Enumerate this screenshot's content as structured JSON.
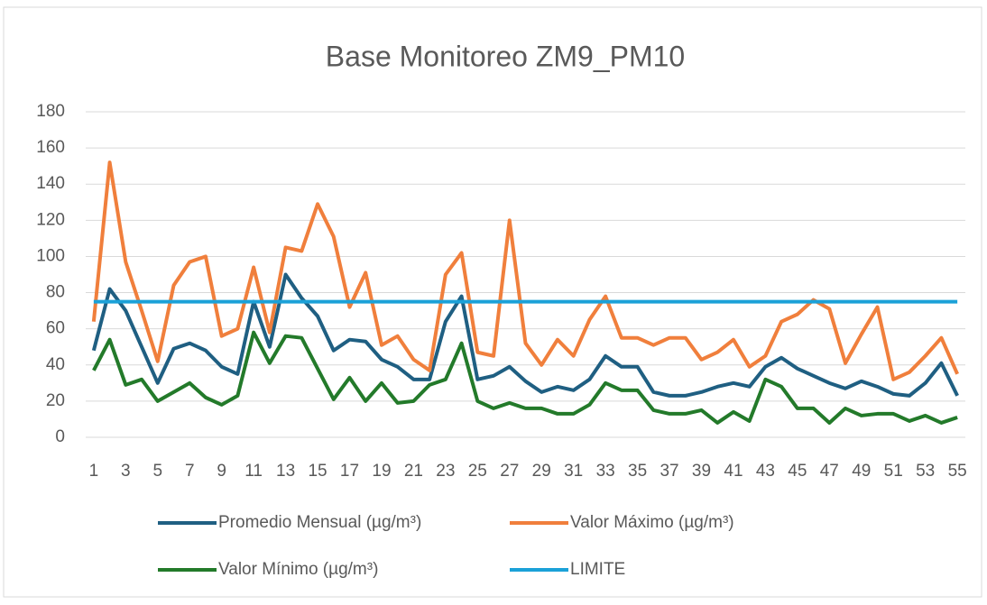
{
  "chart_data": {
    "type": "line",
    "title": "Base Monitoreo ZM9_PM10",
    "categories": [
      1,
      null,
      3,
      null,
      5,
      null,
      7,
      null,
      9,
      null,
      11,
      null,
      13,
      null,
      15,
      null,
      17,
      null,
      19,
      null,
      21,
      null,
      23,
      null,
      25,
      null,
      27,
      null,
      29,
      null,
      31,
      null,
      33,
      null,
      35,
      null,
      37,
      null,
      39,
      null,
      41,
      null,
      43,
      null,
      45,
      null,
      47,
      null,
      49,
      null,
      51,
      null,
      53,
      null,
      55
    ],
    "series": [
      {
        "name": "Promedio Mensual (µg/m³)",
        "color": "#1f5f82",
        "values": [
          48,
          82,
          70,
          50,
          30,
          49,
          52,
          48,
          39,
          35,
          75,
          50,
          90,
          77,
          67,
          48,
          54,
          53,
          43,
          39,
          32,
          32,
          64,
          78,
          32,
          34,
          39,
          31,
          25,
          28,
          26,
          32,
          45,
          39,
          39,
          25,
          23,
          23,
          25,
          28,
          30,
          28,
          39,
          44,
          38,
          34,
          30,
          27,
          31,
          28,
          24,
          23,
          30,
          41,
          23
        ]
      },
      {
        "name": "Valor Máximo (µg/m³)",
        "color": "#f07f3c",
        "values": [
          64,
          152,
          97,
          70,
          42,
          84,
          97,
          100,
          56,
          60,
          94,
          58,
          105,
          103,
          129,
          111,
          72,
          91,
          51,
          56,
          43,
          37,
          90,
          102,
          47,
          45,
          120,
          52,
          40,
          54,
          45,
          65,
          78,
          55,
          55,
          51,
          55,
          55,
          43,
          47,
          54,
          39,
          45,
          64,
          68,
          76,
          71,
          41,
          57,
          72,
          32,
          36,
          45,
          55,
          35
        ]
      },
      {
        "name": "Valor Mínimo (µg/m³)",
        "color": "#237a2a",
        "values": [
          37,
          54,
          29,
          32,
          20,
          25,
          30,
          22,
          18,
          23,
          58,
          41,
          56,
          55,
          38,
          21,
          33,
          20,
          30,
          19,
          20,
          29,
          32,
          52,
          20,
          16,
          19,
          16,
          16,
          13,
          13,
          18,
          30,
          26,
          26,
          15,
          13,
          13,
          15,
          8,
          14,
          9,
          32,
          28,
          16,
          16,
          8,
          16,
          12,
          13,
          13,
          9,
          12,
          8,
          11
        ]
      },
      {
        "name": "LIMITE",
        "color": "#1ba1d8",
        "values": [
          75,
          75,
          75,
          75,
          75,
          75,
          75,
          75,
          75,
          75,
          75,
          75,
          75,
          75,
          75,
          75,
          75,
          75,
          75,
          75,
          75,
          75,
          75,
          75,
          75,
          75,
          75,
          75,
          75,
          75,
          75,
          75,
          75,
          75,
          75,
          75,
          75,
          75,
          75,
          75,
          75,
          75,
          75,
          75,
          75,
          75,
          75,
          75,
          75,
          75,
          75,
          75,
          75,
          75,
          75
        ]
      }
    ],
    "ylim": [
      0,
      180
    ],
    "yticks": [
      0,
      20,
      40,
      60,
      80,
      100,
      120,
      140,
      160,
      180
    ],
    "grid": true
  }
}
